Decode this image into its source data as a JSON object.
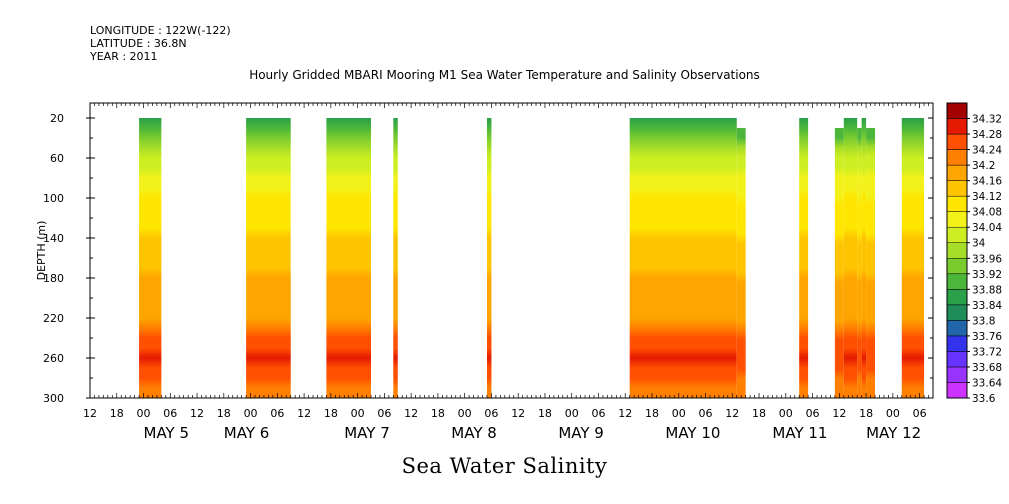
{
  "header": {
    "longitude": "LONGITUDE : 122W(-122)",
    "latitude": "LATITUDE : 36.8N",
    "year": "YEAR : 2011"
  },
  "chart_data": {
    "type": "heatmap",
    "title": "Hourly Gridded MBARI Mooring M1 Sea Water Temperature and Salinity Observations",
    "ylabel": "DEPTH (m)",
    "xlabel": "",
    "variable_label": "Sea Water Salinity",
    "ylim": [
      300,
      5
    ],
    "y_ticks": [
      20,
      60,
      100,
      140,
      180,
      220,
      260,
      300
    ],
    "xlim_hours": [
      0,
      189
    ],
    "x_tick_hours": [
      "12",
      "18",
      "00",
      "06",
      "12",
      "18",
      "00",
      "06",
      "12",
      "18",
      "00",
      "06",
      "12",
      "18",
      "00",
      "06",
      "12",
      "18",
      "00",
      "06",
      "12",
      "18",
      "00",
      "06",
      "12",
      "18",
      "00",
      "06",
      "12",
      "18",
      "00",
      "06",
      "12"
    ],
    "x_day_labels": [
      {
        "label": "MAY  5",
        "hour": 12
      },
      {
        "label": "MAY  6",
        "hour": 30
      },
      {
        "label": "MAY  7",
        "hour": 57
      },
      {
        "label": "MAY  8",
        "hour": 81
      },
      {
        "label": "MAY  9",
        "hour": 105
      },
      {
        "label": "MAY 10",
        "hour": 129
      },
      {
        "label": "MAY 11",
        "hour": 153
      },
      {
        "label": "MAY 12",
        "hour": 174
      }
    ],
    "colorbar": {
      "levels": [
        33.6,
        33.64,
        33.68,
        33.72,
        33.76,
        33.8,
        33.84,
        33.88,
        33.92,
        33.96,
        34,
        34.04,
        34.08,
        34.12,
        34.16,
        34.2,
        34.24,
        34.28,
        34.32
      ],
      "colors": [
        "#cc33ff",
        "#9933ff",
        "#6633ff",
        "#3333ee",
        "#2266aa",
        "#1f8c5a",
        "#2aa048",
        "#4cb63a",
        "#7acc2e",
        "#a6dd28",
        "#ccee22",
        "#f2f21a",
        "#ffe600",
        "#ffc400",
        "#ffa500",
        "#ff7f00",
        "#ff4f00",
        "#e51a00",
        "#a30000"
      ]
    },
    "depth_profile": [
      [
        20,
        33.84
      ],
      [
        40,
        33.92
      ],
      [
        60,
        34.02
      ],
      [
        100,
        34.08
      ],
      [
        140,
        34.12
      ],
      [
        180,
        34.16
      ],
      [
        220,
        34.18
      ],
      [
        240,
        34.24
      ],
      [
        260,
        34.28
      ],
      [
        280,
        34.24
      ],
      [
        300,
        34.2
      ]
    ],
    "segments": [
      {
        "start_hour": 11,
        "end_hour": 16,
        "top_depth": 20
      },
      {
        "start_hour": 35,
        "end_hour": 45,
        "top_depth": 20
      },
      {
        "start_hour": 53,
        "end_hour": 63,
        "top_depth": 20
      },
      {
        "start_hour": 68,
        "end_hour": 69,
        "top_depth": 20
      },
      {
        "start_hour": 89,
        "end_hour": 90,
        "top_depth": 20
      },
      {
        "start_hour": 121,
        "end_hour": 145,
        "top_depth": 20
      },
      {
        "start_hour": 145,
        "end_hour": 147,
        "top_depth": 30
      },
      {
        "start_hour": 159,
        "end_hour": 161,
        "top_depth": 20
      },
      {
        "start_hour": 167,
        "end_hour": 169,
        "top_depth": 30
      },
      {
        "start_hour": 169,
        "end_hour": 172,
        "top_depth": 20
      },
      {
        "start_hour": 172,
        "end_hour": 173,
        "top_depth": 30
      },
      {
        "start_hour": 173,
        "end_hour": 174,
        "top_depth": 20
      },
      {
        "start_hour": 174,
        "end_hour": 176,
        "top_depth": 30
      },
      {
        "start_hour": 182,
        "end_hour": 187,
        "top_depth": 20
      }
    ]
  }
}
